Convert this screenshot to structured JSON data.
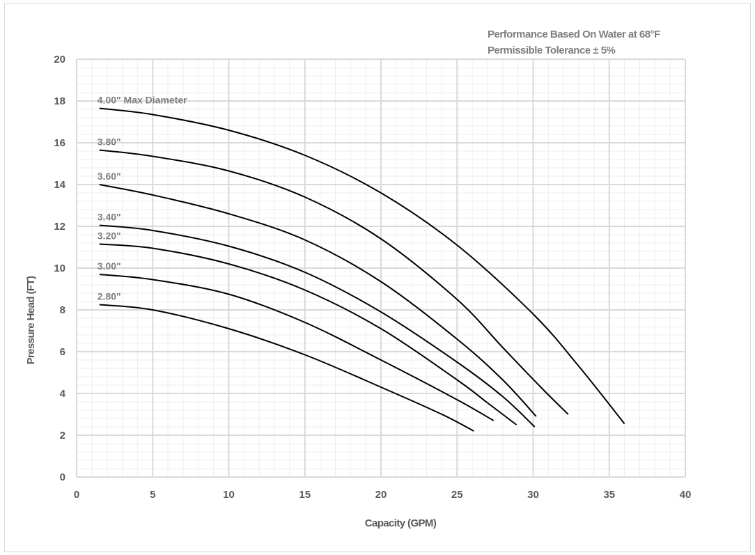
{
  "chart_data": {
    "type": "line",
    "title": "",
    "notes": [
      "Performance Based On Water at 68°F",
      "Permissible Tolerance ± 5%"
    ],
    "xlabel": "Capacity (GPM)",
    "ylabel": "Pressure Head (FT)",
    "xlim": [
      0,
      40
    ],
    "ylim": [
      0,
      20
    ],
    "x_ticks": [
      "0",
      "5",
      "10",
      "15",
      "20",
      "25",
      "30",
      "35",
      "40"
    ],
    "y_ticks": [
      "0",
      "2",
      "4",
      "6",
      "8",
      "10",
      "12",
      "14",
      "16",
      "18",
      "20"
    ],
    "grid": true,
    "series": [
      {
        "name": "4.00\" Max Diameter",
        "x": [
          1.5,
          5,
          10,
          15,
          20,
          25,
          30,
          33,
          36
        ],
        "y": [
          17.65,
          17.35,
          16.6,
          15.4,
          13.6,
          11.1,
          7.8,
          5.3,
          2.55
        ]
      },
      {
        "name": "3.80\"",
        "x": [
          1.5,
          5,
          10,
          15,
          20,
          25,
          28,
          30.5,
          32.3
        ],
        "y": [
          15.65,
          15.35,
          14.65,
          13.4,
          11.4,
          8.5,
          6.2,
          4.3,
          3.0
        ]
      },
      {
        "name": "3.60\"",
        "x": [
          1.5,
          5,
          10,
          15,
          20,
          25,
          28,
          30.2
        ],
        "y": [
          14.0,
          13.5,
          12.6,
          11.35,
          9.35,
          6.6,
          4.65,
          2.9
        ]
      },
      {
        "name": "3.40\"",
        "x": [
          1.5,
          5,
          10,
          15,
          20,
          25,
          28,
          30.1
        ],
        "y": [
          12.05,
          11.8,
          11.05,
          9.8,
          7.9,
          5.5,
          3.85,
          2.4
        ]
      },
      {
        "name": "3.20\"",
        "x": [
          1.5,
          5,
          10,
          15,
          20,
          25,
          27,
          28.9
        ],
        "y": [
          11.15,
          10.95,
          10.2,
          8.95,
          7.1,
          4.65,
          3.55,
          2.5
        ]
      },
      {
        "name": "3.00\"",
        "x": [
          1.5,
          5,
          10,
          15,
          20,
          25,
          27.4
        ],
        "y": [
          9.7,
          9.45,
          8.75,
          7.4,
          5.6,
          3.7,
          2.7
        ]
      },
      {
        "name": "2.80\"",
        "x": [
          1.5,
          5,
          10,
          15,
          20,
          24,
          26.1
        ],
        "y": [
          8.25,
          8.0,
          7.1,
          5.85,
          4.3,
          3.0,
          2.2
        ]
      }
    ]
  }
}
